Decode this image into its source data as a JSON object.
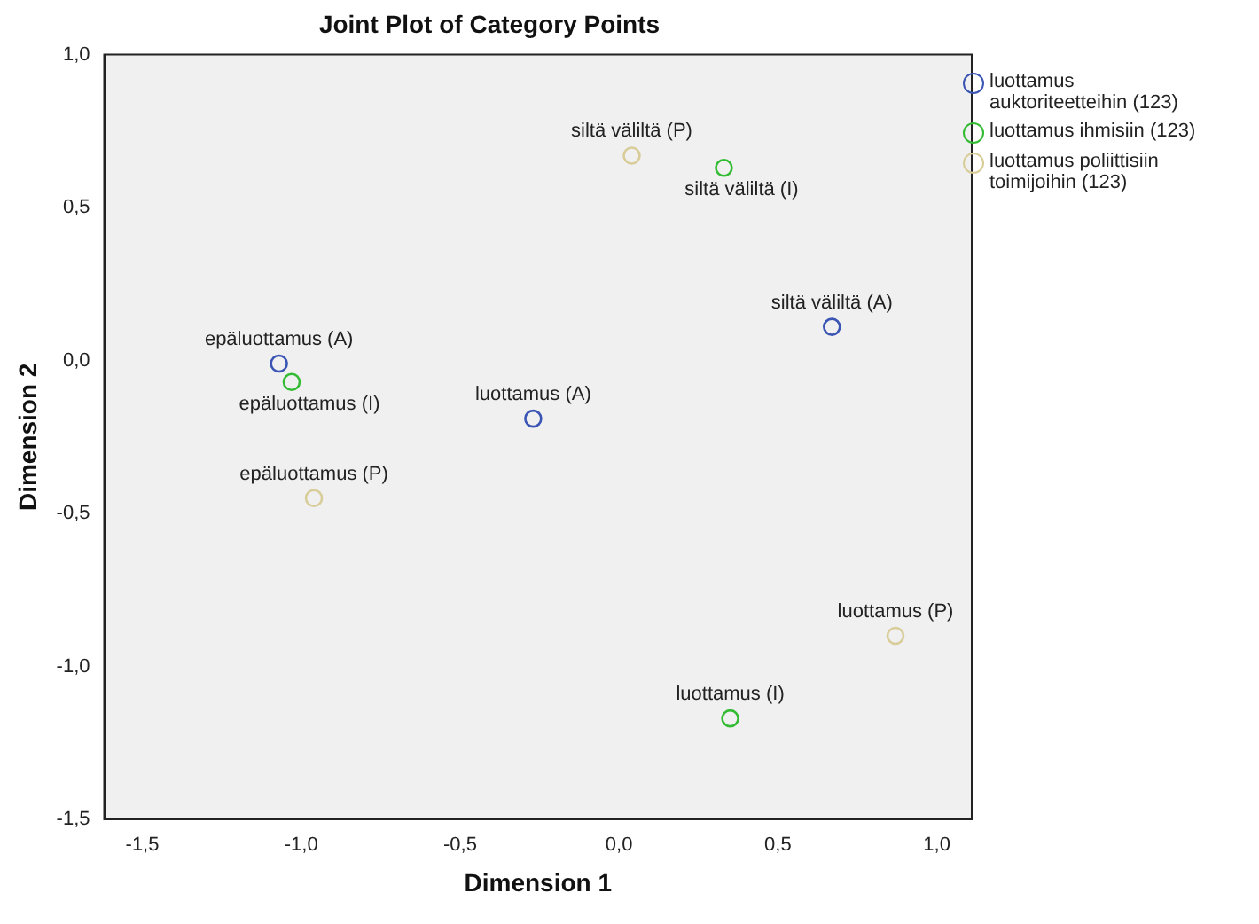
{
  "chart_data": {
    "type": "scatter",
    "title": "Joint Plot of Category Points",
    "xlabel": "Dimension 1",
    "ylabel": "Dimension 2",
    "xlim": [
      -1.62,
      1.11
    ],
    "ylim": [
      -1.5,
      1.0
    ],
    "xticks": [
      {
        "value": -1.5,
        "label": "-1,5"
      },
      {
        "value": -1.0,
        "label": "-1,0"
      },
      {
        "value": -0.5,
        "label": "-0,5"
      },
      {
        "value": 0.0,
        "label": "0,0"
      },
      {
        "value": 0.5,
        "label": "0,5"
      },
      {
        "value": 1.0,
        "label": "1,0"
      }
    ],
    "yticks": [
      {
        "value": -1.5,
        "label": "-1,5"
      },
      {
        "value": -1.0,
        "label": "-1,0"
      },
      {
        "value": -0.5,
        "label": "-0,5"
      },
      {
        "value": 0.0,
        "label": "0,0"
      },
      {
        "value": 0.5,
        "label": "0,5"
      },
      {
        "value": 1.0,
        "label": "1,0"
      }
    ],
    "series": [
      {
        "name": "luottamus auktoriteetteihin (123)",
        "color": "#3b55b5",
        "x": [
          -1.07,
          -0.27,
          0.67
        ],
        "values": [
          -0.01,
          -0.19,
          0.11
        ]
      },
      {
        "name": "luottamus ihmisiin (123)",
        "color": "#33bb33",
        "x": [
          -1.03,
          0.35,
          0.33
        ],
        "values": [
          -0.07,
          -1.17,
          0.63
        ]
      },
      {
        "name": "luottamus poliittisiin toimijoihin (123)",
        "color": "#d8cc99",
        "x": [
          -0.96,
          0.87,
          0.04
        ],
        "values": [
          -0.45,
          -0.9,
          0.67
        ]
      }
    ],
    "annotations": [
      {
        "text": "epäluottamus (A)",
        "x": -1.07,
        "y": -0.01
      },
      {
        "text": "luottamus (A)",
        "x": -0.27,
        "y": -0.19
      },
      {
        "text": "siltä väliltä (A)",
        "x": 0.67,
        "y": 0.11
      },
      {
        "text": "epäluottamus (I)",
        "x": -1.03,
        "y": -0.07
      },
      {
        "text": "luottamus (I)",
        "x": 0.35,
        "y": -1.17
      },
      {
        "text": "siltä väliltä (I)",
        "x": 0.33,
        "y": 0.63
      },
      {
        "text": "epäluottamus (P)",
        "x": -0.96,
        "y": -0.45
      },
      {
        "text": "luottamus (P)",
        "x": 0.87,
        "y": -0.9
      },
      {
        "text": "siltä väliltä (P)",
        "x": 0.04,
        "y": 0.67
      }
    ],
    "marker": "circle",
    "legend": "top right"
  }
}
